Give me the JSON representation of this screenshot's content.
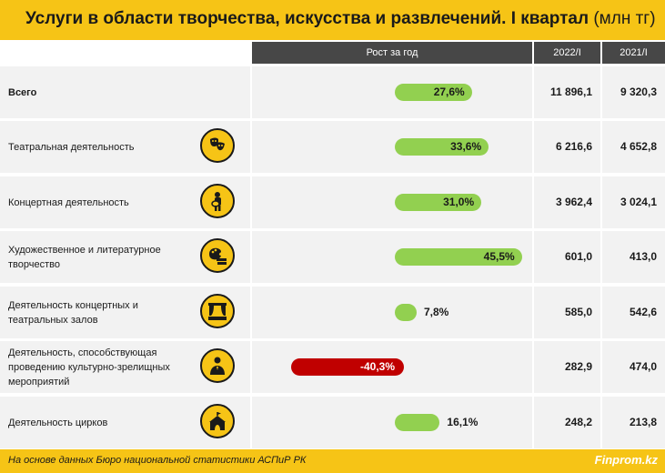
{
  "title": {
    "main": "Услуги в области творчества, искусства и развлечений. I квартал",
    "unit": "(млн тг)"
  },
  "header": {
    "growth": "Рост за год",
    "col1": "2022/I",
    "col2": "2021/I"
  },
  "colors": {
    "accent": "#f6c416",
    "positive_bar": "#92d050",
    "negative_bar": "#c00000",
    "header_bg": "#474747",
    "row_bg": "#f2f2f2"
  },
  "chart_data": {
    "type": "table",
    "columns": [
      "Рост за год",
      "2022/I",
      "2021/I"
    ],
    "rows": [
      {
        "label": "Всего",
        "bold": true,
        "icon": "",
        "growth": 27.6,
        "growth_text": "27,6%",
        "v2022": "11 896,1",
        "v2021": "9 320,3"
      },
      {
        "label": "Театральная деятельность",
        "bold": false,
        "icon": "theater-masks-icon",
        "growth": 33.6,
        "growth_text": "33,6%",
        "v2022": "6 216,6",
        "v2021": "4 652,8"
      },
      {
        "label": "Концертная деятельность",
        "bold": false,
        "icon": "guitarist-icon",
        "growth": 31.0,
        "growth_text": "31,0%",
        "v2022": "3 962,4",
        "v2021": "3 024,1"
      },
      {
        "label": "Художественное и литературное творчество",
        "bold": false,
        "icon": "palette-books-icon",
        "growth": 45.5,
        "growth_text": "45,5%",
        "v2022": "601,0",
        "v2021": "413,0"
      },
      {
        "label": "Деятельность концертных и театральных залов",
        "bold": false,
        "icon": "stage-curtain-icon",
        "growth": 7.8,
        "growth_text": "7,8%",
        "v2022": "585,0",
        "v2021": "542,6"
      },
      {
        "label": "Деятельность, способствующая проведению культурно-зрелищных мероприятий",
        "bold": false,
        "icon": "presenter-icon",
        "growth": -40.3,
        "growth_text": "-40,3%",
        "v2022": "282,9",
        "v2021": "474,0"
      },
      {
        "label": "Деятельность цирков",
        "bold": false,
        "icon": "circus-tent-icon",
        "growth": 16.1,
        "growth_text": "16,1%",
        "v2022": "248,2",
        "v2021": "213,8"
      }
    ]
  },
  "footer": {
    "source": "На основе данных Бюро национальной статистики АСПиР РК",
    "brand": "Finprom.kz"
  }
}
